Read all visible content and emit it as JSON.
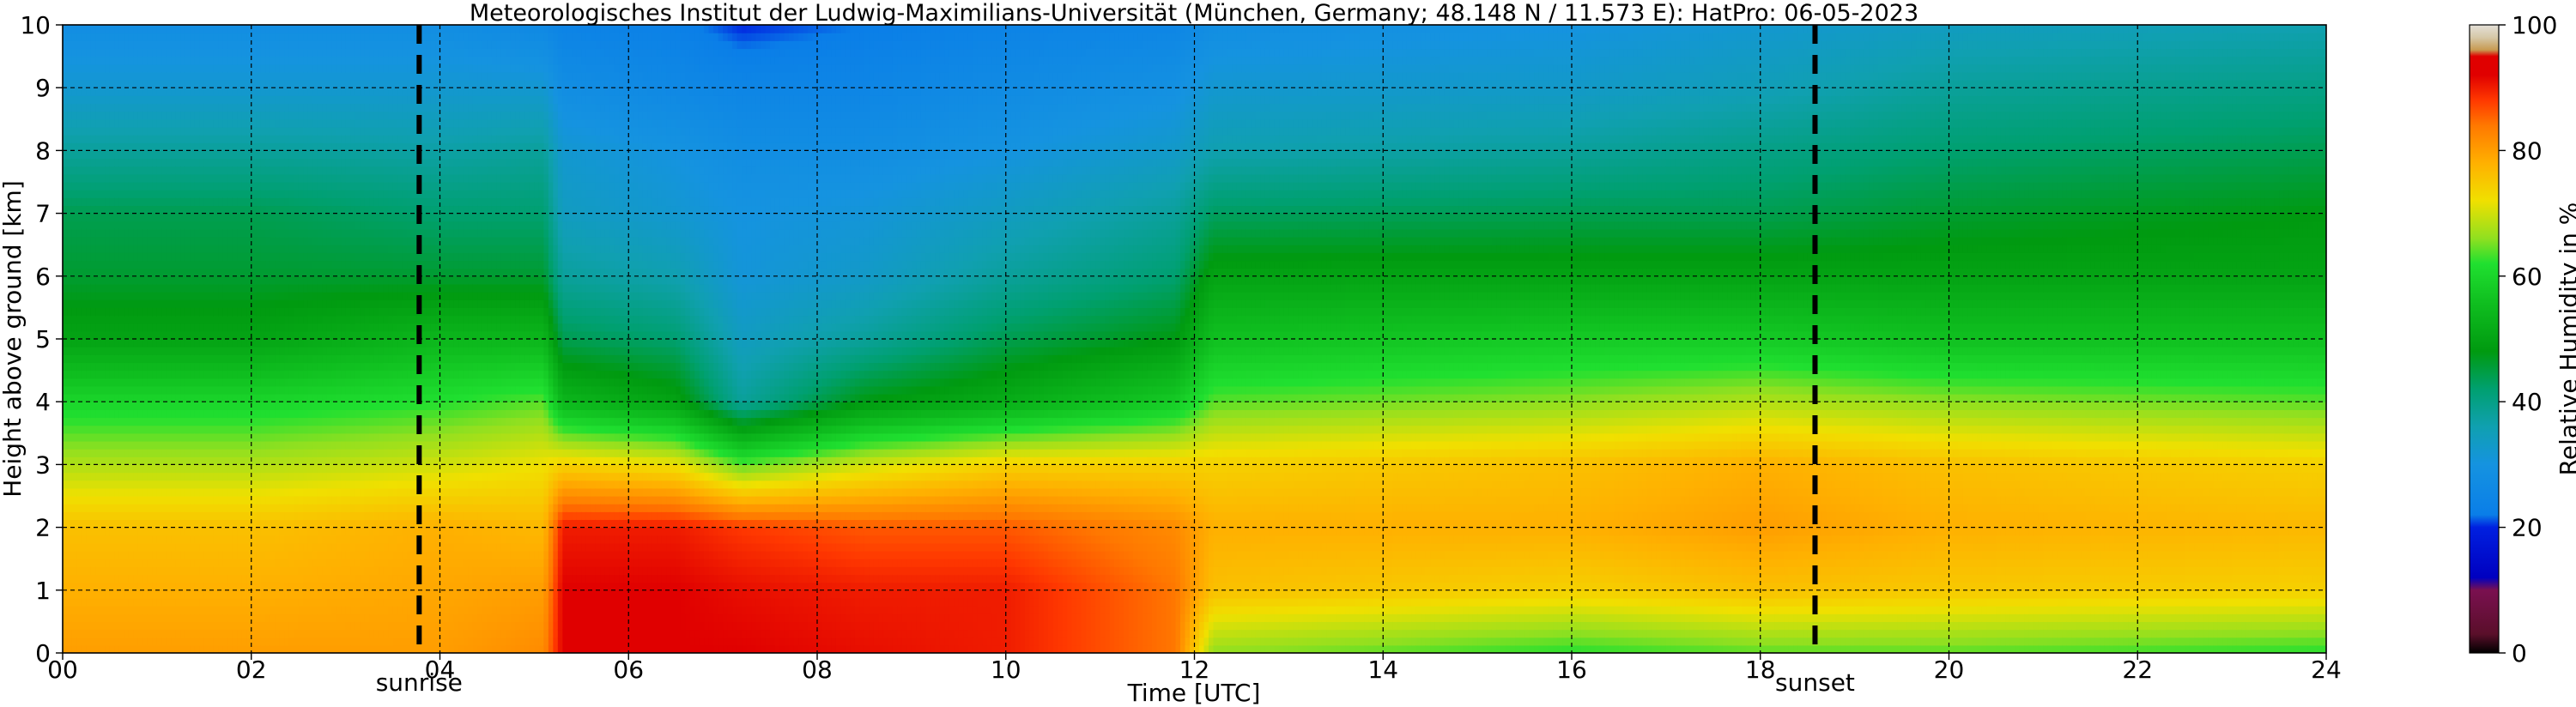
{
  "chart_data": {
    "type": "heatmap",
    "title": "Meteorologisches Institut der Ludwig-Maximilians-Universität (München, Germany; 48.148 N / 11.573 E):    HatPro: 06-05-2023",
    "xlabel": "Time [UTC]",
    "ylabel": "Height above ground [km]",
    "xlim": [
      0,
      24
    ],
    "ylim": [
      0,
      10
    ],
    "x_ticks": [
      {
        "value": 0,
        "label": "00"
      },
      {
        "value": 2,
        "label": "02"
      },
      {
        "value": 4,
        "label": "04"
      },
      {
        "value": 6,
        "label": "06"
      },
      {
        "value": 8,
        "label": "08"
      },
      {
        "value": 10,
        "label": "10"
      },
      {
        "value": 12,
        "label": "12"
      },
      {
        "value": 14,
        "label": "14"
      },
      {
        "value": 16,
        "label": "16"
      },
      {
        "value": 18,
        "label": "18"
      },
      {
        "value": 20,
        "label": "20"
      },
      {
        "value": 22,
        "label": "22"
      },
      {
        "value": 24,
        "label": "24"
      }
    ],
    "y_ticks": [
      0,
      1,
      2,
      3,
      4,
      5,
      6,
      7,
      8,
      9,
      10
    ],
    "grid": true,
    "colorbar": {
      "label": "Relative Humidity in %",
      "range": [
        0,
        100
      ],
      "ticks": [
        0,
        20,
        40,
        60,
        80,
        100
      ],
      "colors": [
        {
          "at": 0,
          "color": "#000000"
        },
        {
          "at": 3,
          "color": "#5a0f2a"
        },
        {
          "at": 10,
          "color": "#7a1050"
        },
        {
          "at": 12,
          "color": "#0000c0"
        },
        {
          "at": 20,
          "color": "#0020e0"
        },
        {
          "at": 22,
          "color": "#0a7ee8"
        },
        {
          "at": 30,
          "color": "#1593e0"
        },
        {
          "at": 36,
          "color": "#10a0b0"
        },
        {
          "at": 42,
          "color": "#00a070"
        },
        {
          "at": 48,
          "color": "#009a10"
        },
        {
          "at": 56,
          "color": "#10c020"
        },
        {
          "at": 62,
          "color": "#20e030"
        },
        {
          "at": 66,
          "color": "#90e020"
        },
        {
          "at": 72,
          "color": "#f0e000"
        },
        {
          "at": 78,
          "color": "#ffb000"
        },
        {
          "at": 84,
          "color": "#ff7800"
        },
        {
          "at": 88,
          "color": "#ff3800"
        },
        {
          "at": 92,
          "color": "#e00000"
        },
        {
          "at": 95,
          "color": "#e00000"
        },
        {
          "at": 96,
          "color": "#c89a50"
        },
        {
          "at": 98,
          "color": "#d6c8a8"
        },
        {
          "at": 100,
          "color": "#e4e0d8"
        }
      ]
    },
    "markers": [
      {
        "label": "sunrise",
        "x": 3.78
      },
      {
        "label": "sunset",
        "x": 18.58
      }
    ],
    "rh_profile_keyframes": [
      {
        "t": 0.0,
        "rh": [
          80,
          78,
          76,
          68,
          60,
          50,
          46,
          44,
          38,
          32,
          28
        ]
      },
      {
        "t": 2.0,
        "rh": [
          80,
          78,
          76,
          68,
          60,
          50,
          46,
          44,
          38,
          32,
          28
        ]
      },
      {
        "t": 4.0,
        "rh": [
          80,
          79,
          78,
          70,
          62,
          54,
          46,
          42,
          37,
          32,
          28
        ]
      },
      {
        "t": 5.1,
        "rh": [
          82,
          80,
          77,
          72,
          64,
          54,
          46,
          42,
          38,
          32,
          26
        ]
      },
      {
        "t": 5.3,
        "rh": [
          92,
          92,
          90,
          74,
          54,
          44,
          38,
          34,
          32,
          28,
          24
        ]
      },
      {
        "t": 6.5,
        "rh": [
          92,
          92,
          90,
          72,
          50,
          42,
          36,
          32,
          30,
          26,
          23
        ]
      },
      {
        "t": 7.2,
        "rh": [
          92,
          91,
          88,
          64,
          38,
          34,
          31,
          30,
          28,
          25,
          20
        ]
      },
      {
        "t": 8.5,
        "rh": [
          91,
          90,
          86,
          70,
          48,
          38,
          33,
          31,
          28,
          25,
          22
        ]
      },
      {
        "t": 10.0,
        "rh": [
          90,
          90,
          86,
          74,
          52,
          44,
          38,
          34,
          30,
          27,
          24
        ]
      },
      {
        "t": 11.8,
        "rh": [
          84,
          84,
          82,
          74,
          58,
          48,
          42,
          38,
          33,
          29,
          25
        ]
      },
      {
        "t": 12.2,
        "rh": [
          66,
          76,
          78,
          74,
          64,
          56,
          50,
          43,
          36,
          32,
          28
        ]
      },
      {
        "t": 16.0,
        "rh": [
          62,
          74,
          78,
          76,
          66,
          58,
          50,
          44,
          38,
          33,
          30
        ]
      },
      {
        "t": 18.0,
        "rh": [
          64,
          76,
          80,
          78,
          68,
          58,
          50,
          44,
          40,
          35,
          32
        ]
      },
      {
        "t": 20.0,
        "rh": [
          64,
          75,
          78,
          76,
          66,
          56,
          50,
          46,
          42,
          38,
          34
        ]
      },
      {
        "t": 24.0,
        "rh": [
          62,
          74,
          77,
          74,
          64,
          56,
          50,
          48,
          44,
          40,
          36
        ]
      }
    ]
  }
}
